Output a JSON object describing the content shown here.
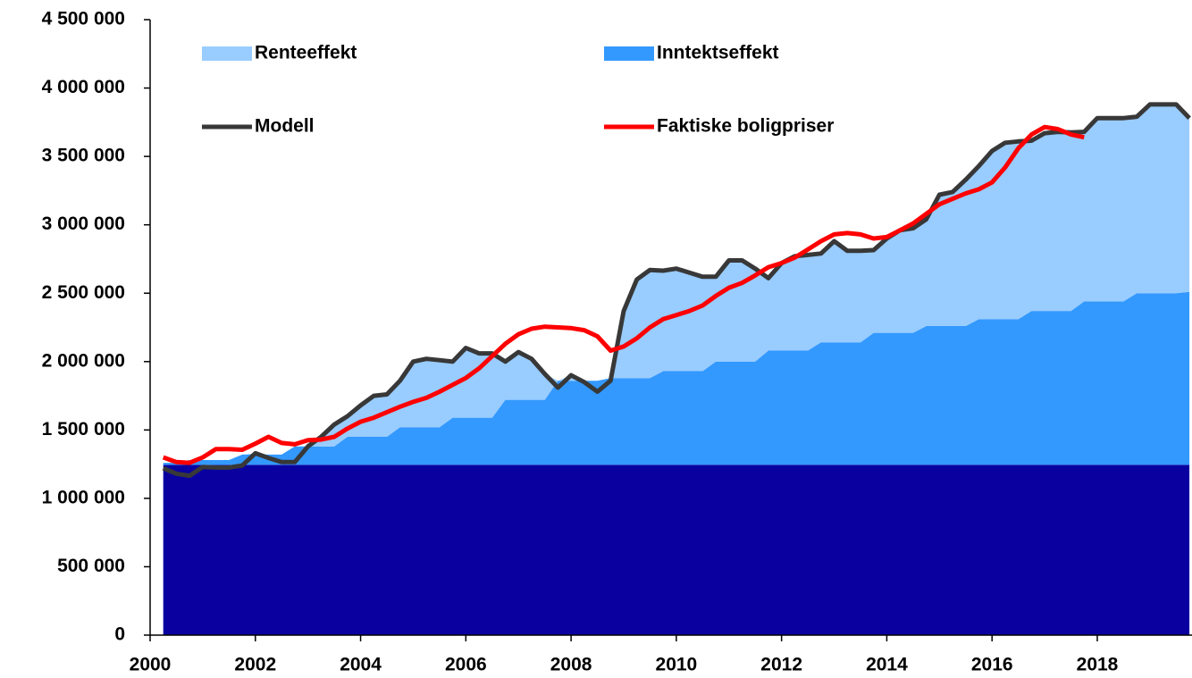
{
  "chart_data": {
    "type": "area",
    "stacked": true,
    "x": [
      2000.25,
      2000.5,
      2000.75,
      2001,
      2001.25,
      2001.5,
      2001.75,
      2002,
      2002.25,
      2002.5,
      2002.75,
      2003,
      2003.25,
      2003.5,
      2003.75,
      2004,
      2004.25,
      2004.5,
      2004.75,
      2005,
      2005.25,
      2005.5,
      2005.75,
      2006,
      2006.25,
      2006.5,
      2006.75,
      2007,
      2007.25,
      2007.5,
      2007.75,
      2008,
      2008.25,
      2008.5,
      2008.75,
      2009,
      2009.25,
      2009.5,
      2009.75,
      2010,
      2010.25,
      2010.5,
      2010.75,
      2011,
      2011.25,
      2011.5,
      2011.75,
      2012,
      2012.25,
      2012.5,
      2012.75,
      2013,
      2013.25,
      2013.5,
      2013.75,
      2014,
      2014.25,
      2014.5,
      2014.75,
      2015,
      2015.25,
      2015.5,
      2015.75,
      2016,
      2016.25,
      2016.5,
      2016.75,
      2017,
      2017.25,
      2017.5,
      2017.75,
      2018,
      2018.25,
      2018.5,
      2018.75,
      2019,
      2019.25,
      2019.5,
      2019.75
    ],
    "series": [
      {
        "color": "#0a00a0",
        "kind": "area",
        "values": [
          1245000,
          1245000,
          1245000,
          1245000,
          1245000,
          1245000,
          1245000,
          1245000,
          1245000,
          1245000,
          1245000,
          1245000,
          1245000,
          1245000,
          1245000,
          1245000,
          1245000,
          1245000,
          1245000,
          1245000,
          1245000,
          1245000,
          1245000,
          1245000,
          1245000,
          1245000,
          1245000,
          1245000,
          1245000,
          1245000,
          1245000,
          1245000,
          1245000,
          1245000,
          1245000,
          1245000,
          1245000,
          1245000,
          1245000,
          1245000,
          1245000,
          1245000,
          1245000,
          1245000,
          1245000,
          1245000,
          1245000,
          1245000,
          1245000,
          1245000,
          1245000,
          1245000,
          1245000,
          1245000,
          1245000,
          1245000,
          1245000,
          1245000,
          1245000,
          1245000,
          1245000,
          1245000,
          1245000,
          1245000,
          1245000,
          1245000,
          1245000,
          1245000,
          1245000,
          1245000,
          1245000,
          1245000,
          1245000,
          1245000,
          1245000,
          1245000,
          1245000,
          1245000,
          1245000
        ]
      },
      {
        "name": "Inntektseffekt",
        "color": "#3399ff",
        "kind": "area",
        "values": [
          15000,
          15000,
          35000,
          35000,
          35000,
          35000,
          75000,
          75000,
          75000,
          75000,
          135000,
          135000,
          135000,
          135000,
          205000,
          205000,
          205000,
          205000,
          275000,
          275000,
          275000,
          275000,
          345000,
          345000,
          345000,
          345000,
          475000,
          475000,
          475000,
          475000,
          615000,
          615000,
          615000,
          615000,
          635000,
          635000,
          635000,
          635000,
          685000,
          685000,
          685000,
          685000,
          755000,
          755000,
          755000,
          755000,
          835000,
          835000,
          835000,
          835000,
          895000,
          895000,
          895000,
          895000,
          965000,
          965000,
          965000,
          965000,
          1015000,
          1015000,
          1015000,
          1015000,
          1065000,
          1065000,
          1065000,
          1065000,
          1125000,
          1125000,
          1125000,
          1125000,
          1195000,
          1195000,
          1195000,
          1195000,
          1255000,
          1255000,
          1255000,
          1255000,
          1265000
        ]
      },
      {
        "name": "Renteeffekt",
        "color": "#99ccff",
        "kind": "area",
        "values": [
          0,
          0,
          0,
          0,
          0,
          0,
          0,
          10000,
          0,
          0,
          0,
          0,
          70000,
          160000,
          150000,
          230000,
          300000,
          310000,
          340000,
          480000,
          500000,
          490000,
          410000,
          510000,
          470000,
          470000,
          280000,
          350000,
          300000,
          190000,
          0,
          40000,
          0,
          0,
          0,
          490000,
          720000,
          790000,
          735000,
          750000,
          720000,
          690000,
          620000,
          740000,
          740000,
          680000,
          530000,
          640000,
          690000,
          700000,
          650000,
          740000,
          670000,
          670000,
          605000,
          690000,
          750000,
          765000,
          780000,
          960000,
          980000,
          1070000,
          1120000,
          1230000,
          1290000,
          1300000,
          1245000,
          1300000,
          1310000,
          1305000,
          1240000,
          1340000,
          1340000,
          1340000,
          1290000,
          1380000,
          1380000,
          1380000,
          1270000
        ]
      },
      {
        "name": "Modell",
        "color": "#383838",
        "kind": "line",
        "values": [
          1220000,
          1180000,
          1165000,
          1230000,
          1225000,
          1225000,
          1240000,
          1330000,
          1295000,
          1265000,
          1265000,
          1380000,
          1450000,
          1540000,
          1600000,
          1680000,
          1750000,
          1760000,
          1860000,
          2000000,
          2020000,
          2010000,
          2000000,
          2100000,
          2060000,
          2060000,
          2000000,
          2070000,
          2020000,
          1910000,
          1810000,
          1900000,
          1850000,
          1780000,
          1860000,
          2370000,
          2600000,
          2670000,
          2665000,
          2680000,
          2650000,
          2620000,
          2620000,
          2740000,
          2740000,
          2680000,
          2610000,
          2720000,
          2770000,
          2780000,
          2790000,
          2880000,
          2810000,
          2810000,
          2815000,
          2900000,
          2960000,
          2975000,
          3040000,
          3220000,
          3240000,
          3330000,
          3430000,
          3540000,
          3600000,
          3610000,
          3615000,
          3670000,
          3680000,
          3675000,
          3680000,
          3780000,
          3780000,
          3780000,
          3790000,
          3880000,
          3880000,
          3880000,
          3780000
        ]
      },
      {
        "name": "Faktiske boligpriser",
        "color": "#ff0000",
        "kind": "line",
        "values": [
          1300000,
          1265000,
          1260000,
          1300000,
          1360000,
          1360000,
          1355000,
          1400000,
          1450000,
          1405000,
          1395000,
          1425000,
          1430000,
          1450000,
          1510000,
          1560000,
          1590000,
          1630000,
          1670000,
          1705000,
          1735000,
          1780000,
          1830000,
          1880000,
          1950000,
          2040000,
          2130000,
          2200000,
          2240000,
          2255000,
          2250000,
          2245000,
          2230000,
          2185000,
          2080000,
          2110000,
          2170000,
          2250000,
          2310000,
          2340000,
          2370000,
          2410000,
          2480000,
          2540000,
          2575000,
          2630000,
          2690000,
          2720000,
          2760000,
          2820000,
          2880000,
          2930000,
          2940000,
          2930000,
          2900000,
          2910000,
          2960000,
          3010000,
          3080000,
          3150000,
          3190000,
          3230000,
          3260000,
          3310000,
          3420000,
          3560000,
          3660000,
          3715000,
          3700000,
          3660000,
          3640000,
          null,
          null,
          null,
          null,
          null,
          null,
          null,
          null
        ]
      }
    ],
    "xlim": [
      2000,
      2019.8
    ],
    "xticks": [
      2000,
      2002,
      2004,
      2006,
      2008,
      2010,
      2012,
      2014,
      2016,
      2018
    ],
    "ylim": [
      0,
      4500000
    ],
    "yticks": [
      0,
      {
        "value": 500000,
        "label": "500 000"
      },
      {
        "value": 1000000,
        "label": "1 000 000"
      },
      {
        "value": 1500000,
        "label": "1 500 000"
      },
      {
        "value": 2000000,
        "label": "2 000 000"
      },
      {
        "value": 2500000,
        "label": "2 500 000"
      },
      {
        "value": 3000000,
        "label": "3 000 000"
      },
      {
        "value": 3500000,
        "label": "3 500 000"
      },
      {
        "value": 4000000,
        "label": "4 000 000"
      },
      {
        "value": 4500000,
        "label": "4 500 000"
      }
    ],
    "grid": false
  }
}
